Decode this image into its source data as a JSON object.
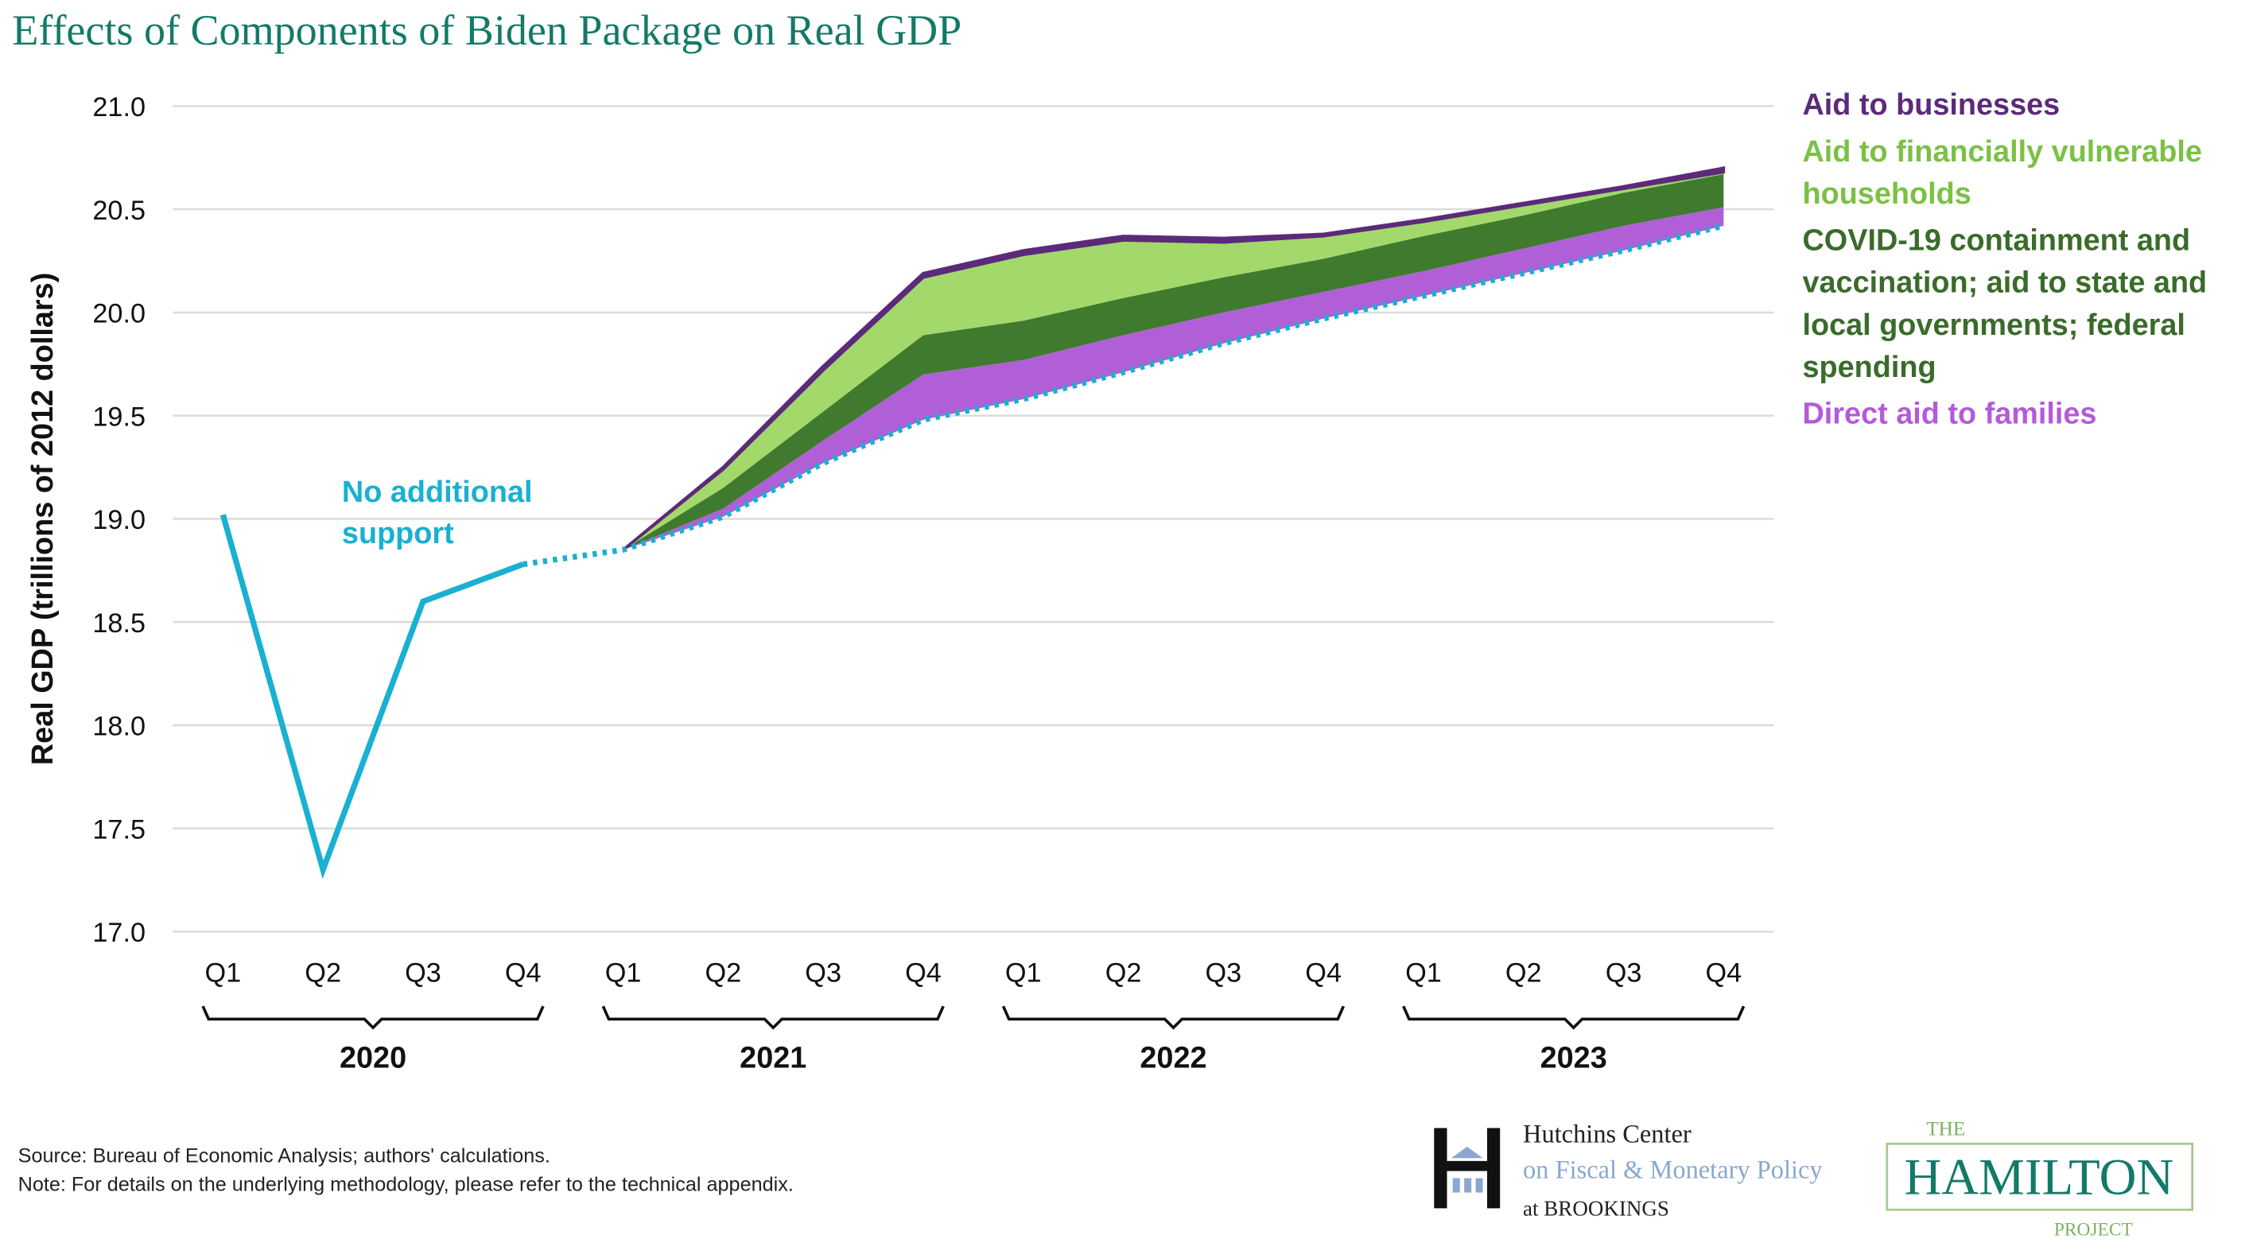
{
  "title": "Effects of Components of Biden Package on Real GDP",
  "chart_data": {
    "type": "area",
    "title": "Effects of Components of Biden Package on Real GDP",
    "ylabel": "Real GDP (trillions of 2012 dollars)",
    "xlabel": "",
    "ylim": [
      17.0,
      21.0
    ],
    "yticks": [
      "17.0",
      "17.5",
      "18.0",
      "18.5",
      "19.0",
      "19.5",
      "20.0",
      "20.5",
      "21.0"
    ],
    "grid": true,
    "legend_position": "right",
    "quarters": [
      "Q1",
      "Q2",
      "Q3",
      "Q4",
      "Q1",
      "Q2",
      "Q3",
      "Q4",
      "Q1",
      "Q2",
      "Q3",
      "Q4",
      "Q1",
      "Q2",
      "Q3",
      "Q4"
    ],
    "years": [
      "2020",
      "2021",
      "2022",
      "2023"
    ],
    "actual": {
      "name": "No additional support",
      "label_line1": "No additional",
      "label_line2": "support",
      "color": "#19b0d2",
      "values": [
        19.02,
        17.3,
        18.6,
        18.78
      ]
    },
    "baseline": {
      "name": "No additional support (projection)",
      "color": "#19b0d2",
      "values": [
        null,
        null,
        null,
        18.78,
        18.85,
        19.01,
        19.27,
        19.48,
        19.58,
        19.71,
        19.85,
        19.97,
        20.08,
        20.19,
        20.3,
        20.42
      ]
    },
    "series": [
      {
        "name": "Direct aid to families",
        "color": "#b05fd6",
        "label_color": "#b45ad8",
        "values": [
          null,
          null,
          null,
          null,
          18.85,
          19.05,
          19.38,
          19.7,
          19.77,
          19.89,
          20.0,
          20.1,
          20.2,
          20.31,
          20.42,
          20.51
        ]
      },
      {
        "name": "COVID-19 containment and vaccination; aid to state and local governments; federal spending",
        "color": "#3f7a2e",
        "label_color": "#3a6b2a",
        "label_lines": [
          "COVID-19 containment and",
          "vaccination; aid to state and",
          "local governments; federal",
          "spending"
        ],
        "values": [
          null,
          null,
          null,
          null,
          18.85,
          19.15,
          19.52,
          19.89,
          19.96,
          20.07,
          20.17,
          20.26,
          20.37,
          20.47,
          20.58,
          20.67
        ]
      },
      {
        "name": "Aid to financially vulnerable households",
        "color": "#a3d86b",
        "label_color": "#7bc144",
        "label_lines": [
          "Aid to financially vulnerable",
          "households"
        ],
        "values": [
          null,
          null,
          null,
          null,
          18.85,
          19.24,
          19.72,
          20.17,
          20.28,
          20.35,
          20.34,
          20.37,
          20.44,
          20.52,
          20.6,
          20.68
        ]
      },
      {
        "name": "Aid to businesses",
        "color": "#5c2a7a",
        "label_color": "#5c2a7a",
        "values": [
          null,
          null,
          null,
          null,
          18.85,
          19.25,
          19.74,
          20.19,
          20.3,
          20.37,
          20.36,
          20.38,
          20.45,
          20.53,
          20.61,
          20.7
        ]
      }
    ]
  },
  "footer": {
    "source": "Source: Bureau of Economic Analysis; authors' calculations.",
    "note": "Note: For details on the underlying methodology, please refer to the technical appendix."
  },
  "logos": {
    "hutchins_line1": "Hutchins Center",
    "hutchins_line2": "on Fiscal & Monetary Policy",
    "hutchins_line3": "at BROOKINGS",
    "hamilton_the": "THE",
    "hamilton_name": "HAMILTON",
    "hamilton_project": "PROJECT"
  }
}
